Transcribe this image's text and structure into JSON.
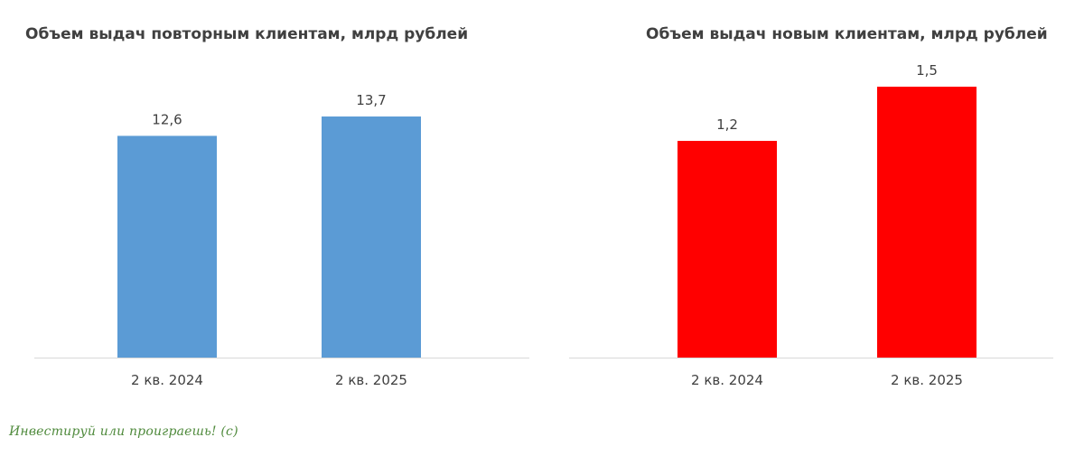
{
  "chart_data": [
    {
      "type": "bar",
      "title": "Объем выдач повторным клиентам, млрд рублей",
      "categories": [
        "2 кв. 2024",
        "2 кв. 2025"
      ],
      "values": [
        12.6,
        13.7
      ],
      "value_labels": [
        "12,6",
        "13,7"
      ],
      "color": "#5b9bd5",
      "ylim": [
        0,
        15.6
      ],
      "grid": false,
      "xlabel": "",
      "ylabel": ""
    },
    {
      "type": "bar",
      "title": "Объем выдач новым клиентам, млрд рублей",
      "categories": [
        "2 кв. 2024",
        "2 кв. 2025"
      ],
      "values": [
        1.2,
        1.5
      ],
      "value_labels": [
        "1,2",
        "1,5"
      ],
      "color": "#ff0000",
      "ylim": [
        0,
        1.67
      ],
      "grid": false,
      "xlabel": "",
      "ylabel": ""
    }
  ],
  "watermark": "Инвестируй или проиграешь! (с)"
}
